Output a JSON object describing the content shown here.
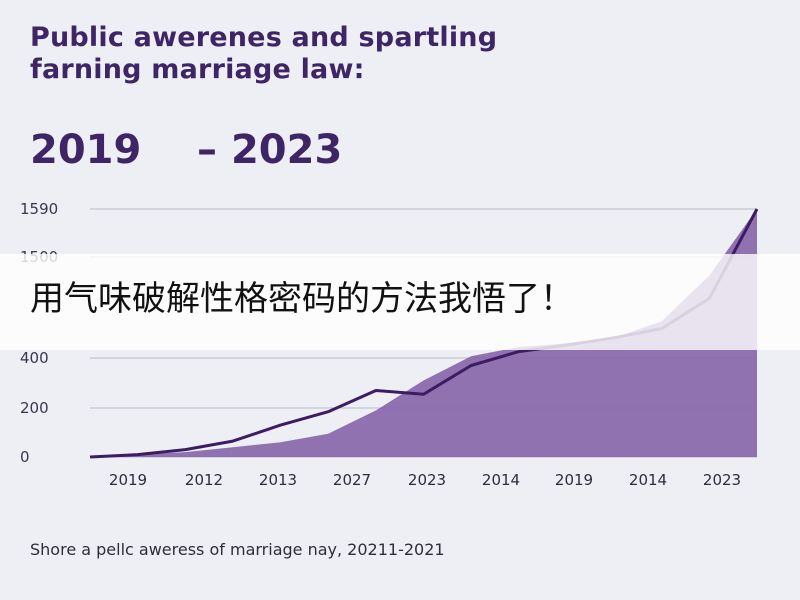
{
  "header": {
    "title_line1": "Public awerenes and spartling",
    "title_line2": "farning marriage law:",
    "year_range": "2019    – 2023"
  },
  "caption": "Shore a pellc aweress of marriage nay, 20211-2021",
  "overlay": {
    "text": "用气味破解性格密码的方法我悟了！"
  },
  "colors": {
    "title": "#3e2565",
    "line": "#3d1c63",
    "area_fill": "#8a6aad",
    "grid": "#b9bac6",
    "background": "#eeeff4"
  },
  "chart_data": {
    "type": "area",
    "y_ticks": [
      "1590",
      "1500",
      "400",
      "200",
      "0"
    ],
    "x_ticks": [
      "2019",
      "2012",
      "2013",
      "2027",
      "2023",
      "2014",
      "2019",
      "2014",
      "2023"
    ],
    "grid": true,
    "series": [
      {
        "type": "line",
        "values": [
          0,
          10,
          30,
          65,
          130,
          185,
          270,
          255,
          370,
          470,
          540,
          620,
          720,
          1050,
          1590
        ]
      },
      {
        "type": "area",
        "values": [
          0,
          10,
          20,
          40,
          60,
          95,
          190,
          310,
          420,
          520,
          560,
          620,
          800,
          1300,
          1590
        ]
      }
    ]
  }
}
